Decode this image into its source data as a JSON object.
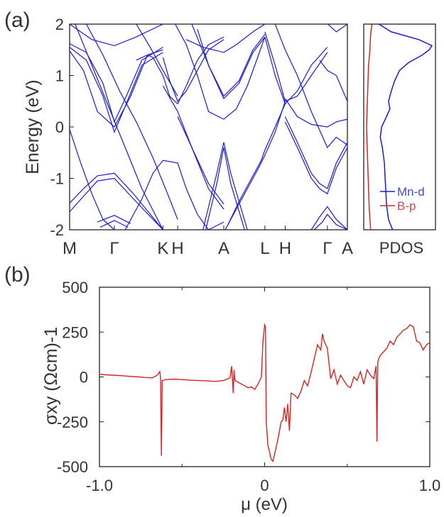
{
  "panels": {
    "a_label": "(a)",
    "b_label": "(b)"
  },
  "chart_data": [
    {
      "type": "line",
      "panel": "(a)",
      "ylabel": "Energy (eV)",
      "ylim": [
        -2,
        2
      ],
      "yticks": [
        -2,
        -1,
        0,
        1,
        2
      ],
      "kpath_labels": [
        "M",
        "Γ",
        "K",
        "H",
        "A",
        "L",
        "H",
        "Γ",
        "A"
      ],
      "kpath_positions": [
        0,
        0.161,
        0.336,
        0.389,
        0.555,
        0.703,
        0.776,
        0.928,
        1.0
      ],
      "line_color": "#1a1adb",
      "bands": [
        {
          "x": [
            0,
            0.06,
            0.12,
            0.161,
            0.2,
            0.26,
            0.336
          ],
          "y": [
            1.62,
            1.45,
            0.85,
            0.1,
            0.55,
            1.3,
            1.55
          ]
        },
        {
          "x": [
            0,
            0.06,
            0.12,
            0.161,
            0.2,
            0.26,
            0.336
          ],
          "y": [
            1.55,
            1.3,
            0.6,
            -0.1,
            0.4,
            1.2,
            1.45
          ]
        },
        {
          "x": [
            0,
            0.05,
            0.1,
            0.161,
            0.22,
            0.28,
            0.336
          ],
          "y": [
            1.48,
            1.1,
            0.3,
            0.0,
            0.6,
            1.4,
            1.5
          ]
        },
        {
          "x": [
            0,
            0.08,
            0.161,
            0.24,
            0.336
          ],
          "y": [
            2.0,
            1.7,
            1.58,
            1.75,
            2.0
          ]
        },
        {
          "x": [
            0,
            0.05,
            0.1,
            0.161,
            0.23,
            0.336
          ],
          "y": [
            -1.48,
            -1.2,
            -0.95,
            -0.9,
            -1.3,
            -2.0
          ]
        },
        {
          "x": [
            0,
            0.05,
            0.1,
            0.161,
            0.23,
            0.336
          ],
          "y": [
            -1.65,
            -1.35,
            -1.05,
            -1.0,
            -1.4,
            -2.0
          ]
        },
        {
          "x": [
            0.1,
            0.161,
            0.22
          ],
          "y": [
            -1.85,
            -1.72,
            -1.88
          ]
        },
        {
          "x": [
            0.11,
            0.161,
            0.21
          ],
          "y": [
            -1.95,
            -1.82,
            -1.95
          ]
        },
        {
          "x": [
            0,
            0.04,
            0.08,
            0.12,
            0.161
          ],
          "y": [
            -0.05,
            -0.7,
            -1.3,
            -1.8,
            -2.0
          ]
        },
        {
          "x": [
            0.02,
            0.08,
            0.14,
            0.2,
            0.26,
            0.336
          ],
          "y": [
            2.0,
            1.2,
            0.4,
            -0.4,
            -1.2,
            -2.0
          ]
        },
        {
          "x": [
            0.06,
            0.12,
            0.18,
            0.24,
            0.3,
            0.36,
            0.389
          ],
          "y": [
            2.0,
            1.4,
            0.7,
            0.1,
            -0.6,
            -1.4,
            -1.8
          ]
        },
        {
          "x": [
            0.2,
            0.26,
            0.3,
            0.336,
            0.389,
            0.42,
            0.46,
            0.5,
            0.555
          ],
          "y": [
            -2.0,
            -1.4,
            -0.9,
            -0.65,
            -0.7,
            -1.2,
            -1.7,
            -2.0,
            -1.85
          ]
        },
        {
          "x": [
            0.24,
            0.29,
            0.336,
            0.389
          ],
          "y": [
            2.0,
            1.55,
            1.1,
            0.6
          ]
        },
        {
          "x": [
            0.24,
            0.28,
            0.3,
            0.336,
            0.36,
            0.389,
            0.42,
            0.46,
            0.5,
            0.555
          ],
          "y": [
            1.3,
            1.4,
            1.35,
            1.0,
            0.6,
            0.45,
            0.8,
            1.3,
            1.6,
            1.75
          ]
        },
        {
          "x": [
            0.336,
            0.36,
            0.389,
            0.42,
            0.46,
            0.5,
            0.555
          ],
          "y": [
            1.35,
            0.9,
            0.5,
            0.7,
            1.1,
            1.5,
            1.7
          ]
        },
        {
          "x": [
            0.336,
            0.389,
            0.44,
            0.5,
            0.555
          ],
          "y": [
            0.8,
            0.3,
            -0.4,
            -1.2,
            -1.6
          ]
        },
        {
          "x": [
            0.389,
            0.44,
            0.5,
            0.555
          ],
          "y": [
            0.2,
            -0.4,
            -1.1,
            -1.5
          ]
        },
        {
          "x": [
            0.38,
            0.42,
            0.46,
            0.5,
            0.555,
            0.6,
            0.64,
            0.68,
            0.703
          ],
          "y": [
            2.0,
            1.6,
            1.0,
            0.3,
            0.15,
            0.35,
            0.8,
            1.4,
            1.75
          ]
        },
        {
          "x": [
            0.44,
            0.5,
            0.555,
            0.61,
            0.66,
            0.703
          ],
          "y": [
            2.0,
            1.2,
            0.6,
            0.9,
            1.5,
            1.8
          ]
        },
        {
          "x": [
            0.46,
            0.5,
            0.555,
            0.61,
            0.66,
            0.703
          ],
          "y": [
            1.9,
            1.2,
            0.55,
            0.85,
            1.45,
            1.75
          ]
        },
        {
          "x": [
            0.42,
            0.48,
            0.555,
            0.6,
            0.66,
            0.703
          ],
          "y": [
            1.7,
            1.55,
            1.45,
            1.6,
            1.85,
            2.0
          ]
        },
        {
          "x": [
            0.48,
            0.53,
            0.555,
            0.58,
            0.64
          ],
          "y": [
            -2.0,
            -0.9,
            -0.3,
            -0.9,
            -2.0
          ]
        },
        {
          "x": [
            0.49,
            0.53,
            0.555,
            0.58,
            0.63
          ],
          "y": [
            -2.0,
            -1.1,
            -0.4,
            -1.1,
            -2.0
          ]
        },
        {
          "x": [
            0.56,
            0.6,
            0.64,
            0.68,
            0.703,
            0.74,
            0.776
          ],
          "y": [
            -2.0,
            -1.6,
            -1.2,
            -0.8,
            -0.55,
            -0.1,
            0.5
          ]
        },
        {
          "x": [
            0.57,
            0.61,
            0.65,
            0.69,
            0.703,
            0.74,
            0.776
          ],
          "y": [
            -1.9,
            -1.45,
            -1.05,
            -0.65,
            -0.45,
            0.0,
            0.45
          ]
        },
        {
          "x": [
            0.703,
            0.74,
            0.776,
            0.82,
            0.87,
            0.928
          ],
          "y": [
            1.75,
            1.0,
            0.45,
            0.7,
            1.2,
            1.55
          ]
        },
        {
          "x": [
            0.703,
            0.74,
            0.776,
            0.82,
            0.87,
            0.928
          ],
          "y": [
            1.85,
            1.2,
            0.5,
            0.6,
            1.0,
            1.45
          ]
        },
        {
          "x": [
            0.74,
            0.776,
            0.82,
            0.87,
            0.928,
            0.96,
            1.0
          ],
          "y": [
            2.0,
            1.5,
            1.0,
            0.3,
            -0.4,
            -0.2,
            -0.35
          ]
        },
        {
          "x": [
            0.776,
            0.82,
            0.87,
            0.9,
            0.928,
            0.96,
            1.0
          ],
          "y": [
            0.2,
            -0.3,
            -0.9,
            -1.1,
            -1.2,
            -0.7,
            -0.3
          ]
        },
        {
          "x": [
            0.776,
            0.82,
            0.87,
            0.9,
            0.928,
            0.96,
            1.0
          ],
          "y": [
            0.1,
            -0.4,
            -1.0,
            -1.2,
            -1.3,
            -0.8,
            -0.4
          ]
        },
        {
          "x": [
            0.776,
            0.82,
            0.87,
            0.928,
            0.96,
            1.0
          ],
          "y": [
            0.55,
            0.2,
            0.05,
            0.0,
            0.1,
            0.15
          ]
        },
        {
          "x": [
            0.87,
            0.9,
            0.928,
            0.96,
            1.0
          ],
          "y": [
            -2.0,
            -1.75,
            -1.55,
            -1.8,
            -2.0
          ]
        },
        {
          "x": [
            0.88,
            0.91,
            0.928,
            0.96,
            1.0
          ],
          "y": [
            -2.0,
            -1.85,
            -1.7,
            -1.9,
            -2.0
          ]
        },
        {
          "x": [
            0.9,
            0.928,
            0.96,
            1.0
          ],
          "y": [
            1.3,
            1.1,
            1.0,
            0.5
          ]
        },
        {
          "x": [
            0.93,
            0.96,
            1.0
          ],
          "y": [
            2.0,
            1.85,
            2.0
          ]
        }
      ]
    },
    {
      "type": "line",
      "panel": "(a) right",
      "xlabel": "PDOS",
      "ylim": [
        -2,
        2
      ],
      "legend_position": "bottom-right",
      "series": [
        {
          "name": "Mn-d",
          "color": "#1a1adb",
          "e": [
            -2.0,
            -1.8,
            -1.5,
            -1.2,
            -1.0,
            -0.7,
            -0.4,
            -0.2,
            0.0,
            0.2,
            0.35,
            0.5,
            0.7,
            0.9,
            1.1,
            1.25,
            1.4,
            1.5,
            1.58,
            1.7,
            1.85,
            2.0
          ],
          "v": [
            0.42,
            0.36,
            0.33,
            0.32,
            0.31,
            0.3,
            0.27,
            0.24,
            0.26,
            0.33,
            0.38,
            0.36,
            0.4,
            0.45,
            0.52,
            0.65,
            0.85,
            0.95,
            0.99,
            0.8,
            0.4,
            0.22
          ]
        },
        {
          "name": "B-p",
          "color": "#dd2222",
          "e": [
            -2.0,
            -1.6,
            -1.2,
            -0.8,
            -0.4,
            0.0,
            0.4,
            0.8,
            1.2,
            1.5,
            1.8,
            2.0
          ],
          "v": [
            0.1,
            0.08,
            0.07,
            0.06,
            0.05,
            0.04,
            0.05,
            0.06,
            0.07,
            0.09,
            0.1,
            0.12
          ]
        }
      ]
    },
    {
      "type": "line",
      "panel": "(b)",
      "ylabel": "σxy (Ωcm)-1",
      "xlabel": "μ (eV)",
      "xlim": [
        -1.0,
        1.0
      ],
      "ylim": [
        -500,
        500
      ],
      "xticks": [
        "-1.0",
        "0",
        "1.0"
      ],
      "yticks": [
        "500",
        "250",
        "0",
        "-250",
        "-500"
      ],
      "line_color": "#dd2222",
      "series": [
        {
          "name": "",
          "x": [
            -1.0,
            -0.96,
            -0.92,
            -0.88,
            -0.84,
            -0.8,
            -0.76,
            -0.72,
            -0.68,
            -0.65,
            -0.635,
            -0.63,
            -0.625,
            -0.62,
            -0.6,
            -0.55,
            -0.5,
            -0.45,
            -0.4,
            -0.35,
            -0.3,
            -0.25,
            -0.21,
            -0.2,
            -0.195,
            -0.19,
            -0.185,
            -0.18,
            -0.17,
            -0.15,
            -0.12,
            -0.1,
            -0.08,
            -0.06,
            -0.04,
            -0.02,
            -0.01,
            0.0,
            0.005,
            0.01,
            0.02,
            0.03,
            0.04,
            0.05,
            0.06,
            0.08,
            0.09,
            0.1,
            0.11,
            0.12,
            0.13,
            0.14,
            0.15,
            0.16,
            0.18,
            0.2,
            0.22,
            0.24,
            0.26,
            0.28,
            0.3,
            0.32,
            0.34,
            0.35,
            0.36,
            0.38,
            0.4,
            0.42,
            0.44,
            0.46,
            0.48,
            0.5,
            0.52,
            0.54,
            0.56,
            0.58,
            0.6,
            0.62,
            0.64,
            0.66,
            0.675,
            0.68,
            0.685,
            0.69,
            0.7,
            0.72,
            0.74,
            0.76,
            0.78,
            0.8,
            0.82,
            0.84,
            0.86,
            0.88,
            0.9,
            0.92,
            0.94,
            0.96,
            0.98,
            1.0
          ],
          "y": [
            15,
            12,
            10,
            8,
            5,
            2,
            0,
            -3,
            -5,
            10,
            30,
            -5,
            -440,
            -20,
            -15,
            -12,
            -15,
            -18,
            -20,
            -22,
            -25,
            -20,
            -5,
            60,
            -10,
            -90,
            40,
            -20,
            -25,
            -35,
            -50,
            -60,
            -55,
            -70,
            -40,
            0,
            200,
            290,
            280,
            -250,
            -380,
            -420,
            -460,
            -470,
            -430,
            -350,
            -300,
            -250,
            -240,
            -170,
            -250,
            -150,
            -300,
            -90,
            -100,
            -120,
            -80,
            -20,
            -50,
            20,
            100,
            180,
            150,
            240,
            200,
            160,
            -10,
            40,
            -40,
            10,
            -20,
            -50,
            -60,
            0,
            -20,
            30,
            -40,
            40,
            10,
            -10,
            60,
            -360,
            80,
            100,
            120,
            140,
            160,
            200,
            180,
            220,
            240,
            260,
            270,
            290,
            280,
            200,
            190,
            150,
            180,
            190
          ]
        }
      ]
    }
  ]
}
